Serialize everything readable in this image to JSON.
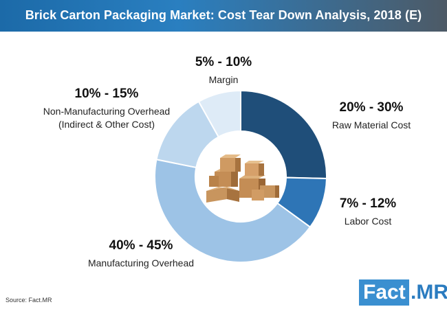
{
  "title": "Brick Carton Packaging Market: Cost Tear Down Analysis, 2018 (E)",
  "source": "Source: Fact.MR",
  "logo": {
    "part1": "Fact",
    "part2": ".MR"
  },
  "image_icon": "cardboard-boxes-icon",
  "colors": {
    "header": "#2a7fc0",
    "raw_material": "#1f4e79",
    "labor": "#2e75b6",
    "manufacturing": "#9dc3e6",
    "non_manufacturing": "#bdd7ee",
    "margin": "#deebf7"
  },
  "labels": {
    "margin": {
      "pct": "5% - 10%",
      "cat": "Margin"
    },
    "non_manufacturing": {
      "pct": "10% - 15%",
      "cat1": "Non-Manufacturing Overhead",
      "cat2": "(Indirect & Other Cost)"
    },
    "raw_material": {
      "pct": "20% - 30%",
      "cat": "Raw Material Cost"
    },
    "labor": {
      "pct": "7% - 12%",
      "cat": "Labor Cost"
    },
    "manufacturing": {
      "pct": "40% - 45%",
      "cat": "Manufacturing Overhead"
    }
  },
  "chart_data": {
    "type": "pie",
    "title": "Brick Carton Packaging Market: Cost Tear Down Analysis, 2018 (E)",
    "style": "donut",
    "categories": [
      "Raw Material Cost",
      "Labor Cost",
      "Manufacturing Overhead",
      "Non-Manufacturing Overhead (Indirect & Other Cost)",
      "Margin"
    ],
    "ranges": [
      "20% - 30%",
      "7% - 12%",
      "40% - 45%",
      "10% - 15%",
      "5% - 10%"
    ],
    "values": [
      25,
      9.5,
      42.5,
      13.5,
      8
    ]
  }
}
